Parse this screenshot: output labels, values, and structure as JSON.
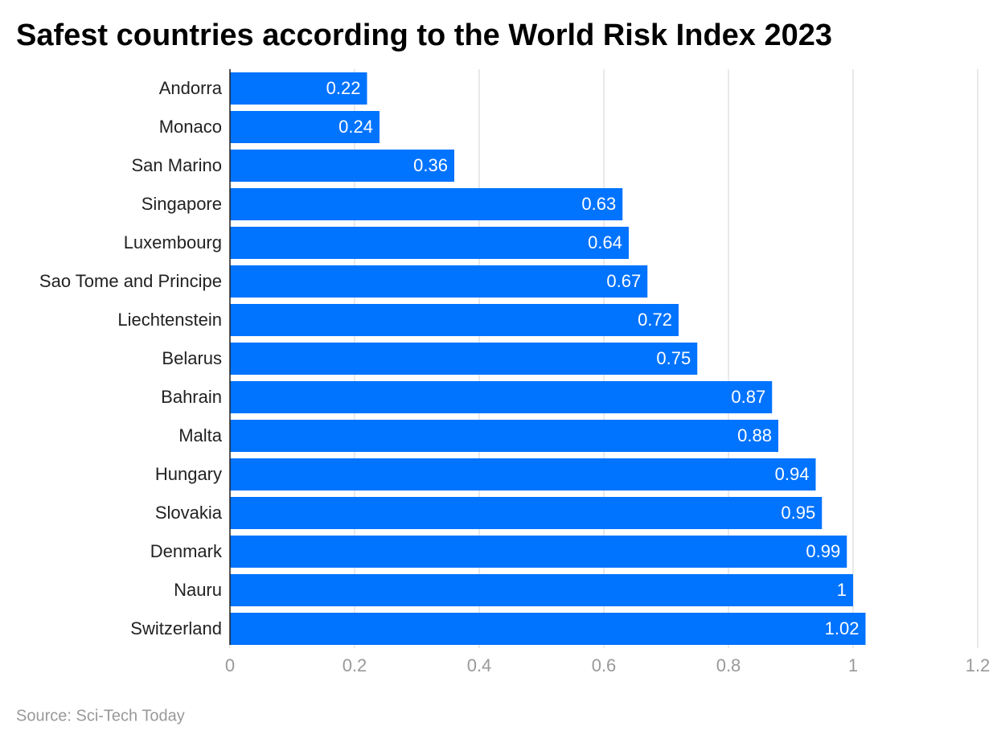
{
  "chart_data": {
    "type": "barh",
    "title": "Safest countries according to the World Risk Index 2023",
    "source": "Source: Sci-Tech Today",
    "categories": [
      "Andorra",
      "Monaco",
      "San Marino",
      "Singapore",
      "Luxembourg",
      "Sao Tome and Principe",
      "Liechtenstein",
      "Belarus",
      "Bahrain",
      "Malta",
      "Hungary",
      "Slovakia",
      "Denmark",
      "Nauru",
      "Switzerland"
    ],
    "values": [
      0.22,
      0.24,
      0.36,
      0.63,
      0.64,
      0.67,
      0.72,
      0.75,
      0.87,
      0.88,
      0.94,
      0.95,
      0.99,
      1,
      1.02
    ],
    "color": "#0073ff",
    "xlim": [
      0,
      1.2
    ],
    "xticks": [
      0,
      0.2,
      0.4,
      0.6,
      0.8,
      1,
      1.2
    ],
    "grid": true
  }
}
